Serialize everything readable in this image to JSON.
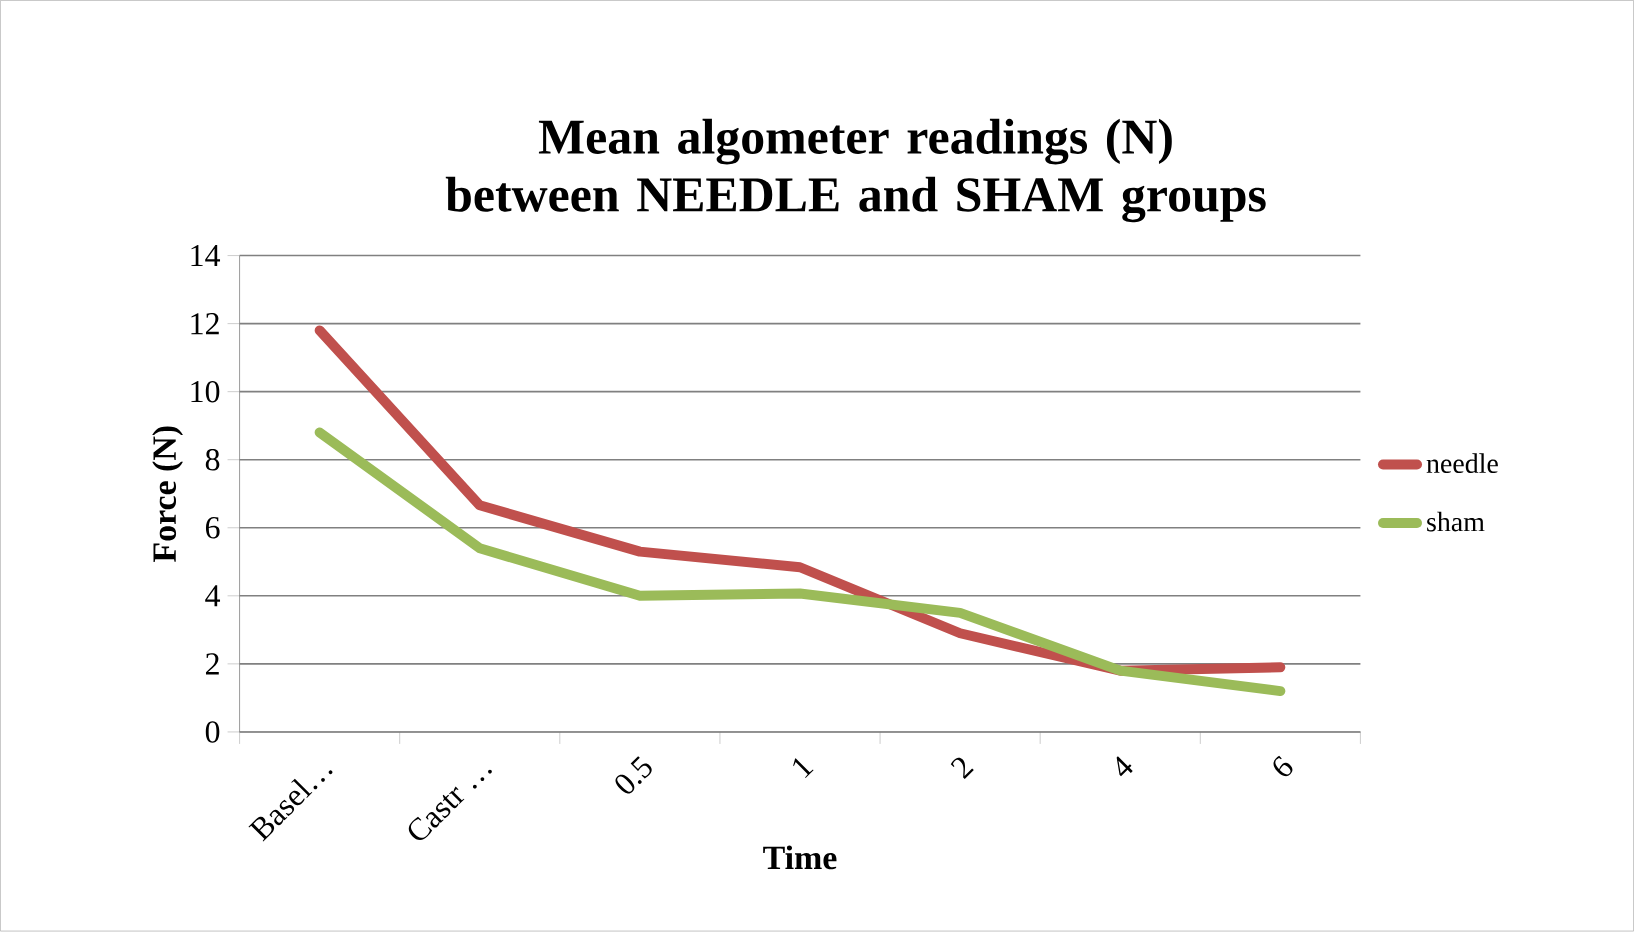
{
  "chart_data": {
    "type": "line",
    "title": "Mean algometer readings (N) between NEEDLE and SHAM groups",
    "xlabel": "Time",
    "ylabel": "Force (N)",
    "categories": [
      "Basel…",
      "Castr …",
      "0.5",
      "1",
      "2",
      "4",
      "6"
    ],
    "series": [
      {
        "name": "needle",
        "color": "#c0504d",
        "values": [
          11.8,
          6.66,
          5.3,
          4.84,
          2.9,
          1.8,
          1.9
        ]
      },
      {
        "name": "sham",
        "color": "#9bbb59",
        "values": [
          8.8,
          5.4,
          4.0,
          4.07,
          3.5,
          1.8,
          1.2
        ]
      }
    ],
    "ylim": [
      0,
      14
    ],
    "yticks": [
      0,
      2,
      4,
      6,
      8,
      10,
      12,
      14
    ],
    "grid": "y",
    "legend": "right",
    "marker": "none",
    "line_style": "solid"
  }
}
